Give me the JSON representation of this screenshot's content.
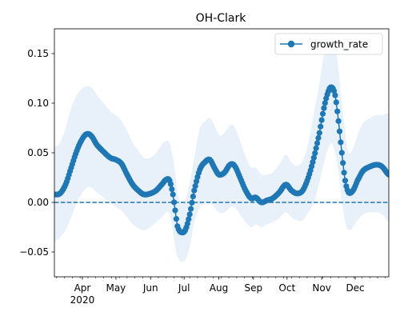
{
  "chart_data": {
    "type": "line",
    "title": "OH-Clark",
    "xlabel": "",
    "ylabel": "",
    "x_start": "2020-03-07",
    "x_end": "2020-12-31",
    "ylim": [
      -0.075,
      0.175
    ],
    "yticks": [
      -0.05,
      0.0,
      0.05,
      0.1,
      0.15
    ],
    "ytick_labels": [
      "−0.05",
      "0.00",
      "0.05",
      "0.10",
      "0.15"
    ],
    "xticks": [
      {
        "date": "2020-04-01",
        "label": "Apr",
        "sublabel": "2020"
      },
      {
        "date": "2020-05-01",
        "label": "May",
        "sublabel": ""
      },
      {
        "date": "2020-06-01",
        "label": "Jun",
        "sublabel": ""
      },
      {
        "date": "2020-07-01",
        "label": "Jul",
        "sublabel": ""
      },
      {
        "date": "2020-08-01",
        "label": "Aug",
        "sublabel": ""
      },
      {
        "date": "2020-09-01",
        "label": "Sep",
        "sublabel": ""
      },
      {
        "date": "2020-10-01",
        "label": "Oct",
        "sublabel": ""
      },
      {
        "date": "2020-11-01",
        "label": "Nov",
        "sublabel": ""
      },
      {
        "date": "2020-12-01",
        "label": "Dec",
        "sublabel": ""
      }
    ],
    "grid": false,
    "legend": {
      "position": "top-right",
      "entries": [
        "growth_rate"
      ]
    },
    "reference_line": {
      "y": 0.0,
      "style": "dashed",
      "color": "#1f77b4"
    },
    "series": [
      {
        "name": "growth_rate",
        "color": "#1f77b4",
        "marker": "circle",
        "band_color": "#c6dbef",
        "points": [
          {
            "x": "2020-03-07",
            "y": 0.008,
            "lo": -0.04,
            "hi": 0.056
          },
          {
            "x": "2020-03-12",
            "y": 0.009,
            "lo": -0.035,
            "hi": 0.06
          },
          {
            "x": "2020-03-17",
            "y": 0.018,
            "lo": -0.028,
            "hi": 0.075
          },
          {
            "x": "2020-03-22",
            "y": 0.035,
            "lo": -0.015,
            "hi": 0.095
          },
          {
            "x": "2020-03-27",
            "y": 0.052,
            "lo": 0.0,
            "hi": 0.108
          },
          {
            "x": "2020-04-01",
            "y": 0.064,
            "lo": 0.01,
            "hi": 0.115
          },
          {
            "x": "2020-04-05",
            "y": 0.069,
            "lo": 0.015,
            "hi": 0.117
          },
          {
            "x": "2020-04-09",
            "y": 0.067,
            "lo": 0.015,
            "hi": 0.116
          },
          {
            "x": "2020-04-14",
            "y": 0.058,
            "lo": 0.01,
            "hi": 0.108
          },
          {
            "x": "2020-04-20",
            "y": 0.051,
            "lo": 0.005,
            "hi": 0.1
          },
          {
            "x": "2020-04-26",
            "y": 0.045,
            "lo": 0.0,
            "hi": 0.092
          },
          {
            "x": "2020-05-01",
            "y": 0.043,
            "lo": -0.005,
            "hi": 0.088
          },
          {
            "x": "2020-05-06",
            "y": 0.039,
            "lo": -0.008,
            "hi": 0.082
          },
          {
            "x": "2020-05-11",
            "y": 0.028,
            "lo": -0.015,
            "hi": 0.072
          },
          {
            "x": "2020-05-16",
            "y": 0.018,
            "lo": -0.022,
            "hi": 0.06
          },
          {
            "x": "2020-05-21",
            "y": 0.012,
            "lo": -0.026,
            "hi": 0.052
          },
          {
            "x": "2020-05-26",
            "y": 0.008,
            "lo": -0.028,
            "hi": 0.045
          },
          {
            "x": "2020-06-01",
            "y": 0.009,
            "lo": -0.025,
            "hi": 0.045
          },
          {
            "x": "2020-06-06",
            "y": 0.012,
            "lo": -0.02,
            "hi": 0.05
          },
          {
            "x": "2020-06-11",
            "y": 0.018,
            "lo": -0.015,
            "hi": 0.058
          },
          {
            "x": "2020-06-15",
            "y": 0.023,
            "lo": -0.01,
            "hi": 0.062
          },
          {
            "x": "2020-06-18",
            "y": 0.022,
            "lo": -0.012,
            "hi": 0.06
          },
          {
            "x": "2020-06-21",
            "y": 0.008,
            "lo": -0.03,
            "hi": 0.045
          },
          {
            "x": "2020-06-23",
            "y": -0.008,
            "lo": -0.045,
            "hi": 0.03
          },
          {
            "x": "2020-06-25",
            "y": -0.024,
            "lo": -0.055,
            "hi": 0.01
          },
          {
            "x": "2020-06-28",
            "y": -0.03,
            "lo": -0.06,
            "hi": 0.0
          },
          {
            "x": "2020-07-02",
            "y": -0.028,
            "lo": -0.058,
            "hi": 0.002
          },
          {
            "x": "2020-07-06",
            "y": -0.012,
            "lo": -0.045,
            "hi": 0.02
          },
          {
            "x": "2020-07-10",
            "y": 0.012,
            "lo": -0.02,
            "hi": 0.045
          },
          {
            "x": "2020-07-15",
            "y": 0.033,
            "lo": -0.005,
            "hi": 0.075
          },
          {
            "x": "2020-07-20",
            "y": 0.041,
            "lo": 0.0,
            "hi": 0.082
          },
          {
            "x": "2020-07-24",
            "y": 0.043,
            "lo": 0.0,
            "hi": 0.085
          },
          {
            "x": "2020-07-28",
            "y": 0.035,
            "lo": -0.005,
            "hi": 0.078
          },
          {
            "x": "2020-08-01",
            "y": 0.028,
            "lo": -0.01,
            "hi": 0.068
          },
          {
            "x": "2020-08-06",
            "y": 0.03,
            "lo": -0.01,
            "hi": 0.07
          },
          {
            "x": "2020-08-11",
            "y": 0.038,
            "lo": -0.005,
            "hi": 0.078
          },
          {
            "x": "2020-08-15",
            "y": 0.037,
            "lo": -0.005,
            "hi": 0.076
          },
          {
            "x": "2020-08-20",
            "y": 0.025,
            "lo": -0.012,
            "hi": 0.062
          },
          {
            "x": "2020-08-25",
            "y": 0.012,
            "lo": -0.02,
            "hi": 0.046
          },
          {
            "x": "2020-08-30",
            "y": 0.004,
            "lo": -0.025,
            "hi": 0.035
          },
          {
            "x": "2020-09-03",
            "y": 0.005,
            "lo": -0.022,
            "hi": 0.035
          },
          {
            "x": "2020-09-08",
            "y": 0.0,
            "lo": -0.025,
            "hi": 0.028
          },
          {
            "x": "2020-09-13",
            "y": 0.002,
            "lo": -0.022,
            "hi": 0.028
          },
          {
            "x": "2020-09-18",
            "y": 0.004,
            "lo": -0.02,
            "hi": 0.03
          },
          {
            "x": "2020-09-24",
            "y": 0.01,
            "lo": -0.016,
            "hi": 0.038
          },
          {
            "x": "2020-09-30",
            "y": 0.018,
            "lo": -0.01,
            "hi": 0.048
          },
          {
            "x": "2020-10-05",
            "y": 0.012,
            "lo": -0.015,
            "hi": 0.04
          },
          {
            "x": "2020-10-10",
            "y": 0.009,
            "lo": -0.018,
            "hi": 0.037
          },
          {
            "x": "2020-10-15",
            "y": 0.012,
            "lo": -0.018,
            "hi": 0.042
          },
          {
            "x": "2020-10-20",
            "y": 0.025,
            "lo": -0.01,
            "hi": 0.06
          },
          {
            "x": "2020-10-25",
            "y": 0.045,
            "lo": 0.0,
            "hi": 0.09
          },
          {
            "x": "2020-10-30",
            "y": 0.07,
            "lo": 0.02,
            "hi": 0.12
          },
          {
            "x": "2020-11-03",
            "y": 0.095,
            "lo": 0.04,
            "hi": 0.15
          },
          {
            "x": "2020-11-07",
            "y": 0.112,
            "lo": 0.055,
            "hi": 0.165
          },
          {
            "x": "2020-11-10",
            "y": 0.116,
            "lo": 0.06,
            "hi": 0.168
          },
          {
            "x": "2020-11-13",
            "y": 0.108,
            "lo": 0.05,
            "hi": 0.16
          },
          {
            "x": "2020-11-16",
            "y": 0.082,
            "lo": 0.03,
            "hi": 0.135
          },
          {
            "x": "2020-11-19",
            "y": 0.05,
            "lo": 0.0,
            "hi": 0.1
          },
          {
            "x": "2020-11-22",
            "y": 0.022,
            "lo": -0.02,
            "hi": 0.07
          },
          {
            "x": "2020-11-25",
            "y": 0.01,
            "lo": -0.028,
            "hi": 0.05
          },
          {
            "x": "2020-11-29",
            "y": 0.012,
            "lo": -0.025,
            "hi": 0.055
          },
          {
            "x": "2020-12-03",
            "y": 0.022,
            "lo": -0.018,
            "hi": 0.068
          },
          {
            "x": "2020-12-08",
            "y": 0.032,
            "lo": -0.012,
            "hi": 0.08
          },
          {
            "x": "2020-12-14",
            "y": 0.036,
            "lo": -0.01,
            "hi": 0.085
          },
          {
            "x": "2020-12-20",
            "y": 0.038,
            "lo": -0.01,
            "hi": 0.088
          },
          {
            "x": "2020-12-25",
            "y": 0.036,
            "lo": -0.012,
            "hi": 0.088
          },
          {
            "x": "2020-12-31",
            "y": 0.028,
            "lo": -0.02,
            "hi": 0.09
          }
        ]
      }
    ]
  }
}
